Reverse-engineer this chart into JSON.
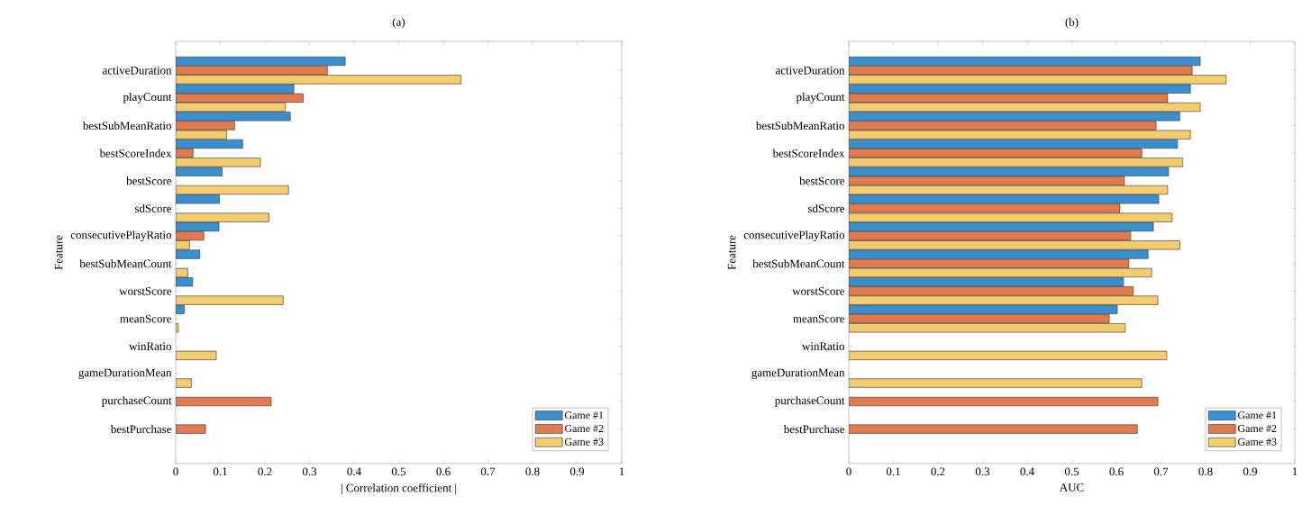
{
  "chart_data": [
    {
      "type": "bar",
      "orientation": "horizontal",
      "title": "(a)",
      "xlabel": "| Correlation coefficient |",
      "ylabel": "Feature",
      "categories": [
        "activeDuration",
        "playCount",
        "bestSubMeanRatio",
        "bestScoreIndex",
        "bestScore",
        "sdScore",
        "consecutivePlayRatio",
        "bestSubMeanCount",
        "worstScore",
        "meanScore",
        "winRatio",
        "gameDurationMean",
        "purchaseCount",
        "bestPurchase"
      ],
      "series": [
        {
          "name": "Game #1",
          "color": "#3c8fcf",
          "values": [
            0.38,
            0.265,
            0.257,
            0.15,
            0.104,
            0.098,
            0.097,
            0.054,
            0.038,
            0.019,
            null,
            null,
            null,
            null
          ]
        },
        {
          "name": "Game #2",
          "color": "#e07b50",
          "values": [
            0.34,
            0.286,
            0.132,
            0.039,
            null,
            null,
            0.063,
            null,
            null,
            null,
            null,
            null,
            0.214,
            0.067
          ]
        },
        {
          "name": "Game #3",
          "color": "#f2cc6f",
          "values": [
            0.64,
            0.246,
            0.114,
            0.19,
            0.253,
            0.209,
            0.031,
            0.027,
            0.241,
            0.006,
            0.091,
            0.035,
            null,
            null
          ]
        }
      ],
      "xlim": [
        0,
        1
      ],
      "xticks": [
        0,
        0.1,
        0.2,
        0.3,
        0.4,
        0.5,
        0.6,
        0.7,
        0.8,
        0.9,
        1
      ],
      "legend": "bottom right"
    },
    {
      "type": "bar",
      "orientation": "horizontal",
      "title": "(b)",
      "xlabel": "AUC",
      "ylabel": "Feature",
      "categories": [
        "activeDuration",
        "playCount",
        "bestSubMeanRatio",
        "bestScoreIndex",
        "bestScore",
        "sdScore",
        "consecutivePlayRatio",
        "bestSubMeanCount",
        "worstScore",
        "meanScore",
        "winRatio",
        "gameDurationMean",
        "purchaseCount",
        "bestPurchase"
      ],
      "series": [
        {
          "name": "Game #1",
          "color": "#3c8fcf",
          "values": [
            0.788,
            0.766,
            0.742,
            0.737,
            0.717,
            0.695,
            0.683,
            0.671,
            0.616,
            0.602,
            null,
            null,
            null,
            null
          ]
        },
        {
          "name": "Game #2",
          "color": "#e07b50",
          "values": [
            0.77,
            0.715,
            0.689,
            0.657,
            0.618,
            0.608,
            0.632,
            0.628,
            0.638,
            0.584,
            null,
            null,
            0.693,
            0.647
          ]
        },
        {
          "name": "Game #3",
          "color": "#f2cc6f",
          "values": [
            0.846,
            0.788,
            0.766,
            0.749,
            0.715,
            0.725,
            0.742,
            0.679,
            0.693,
            0.62,
            0.713,
            0.657,
            null,
            null
          ]
        }
      ],
      "xlim": [
        0,
        1
      ],
      "xticks": [
        0,
        0.1,
        0.2,
        0.3,
        0.4,
        0.5,
        0.6,
        0.7,
        0.8,
        0.9,
        1
      ],
      "legend": "bottom right"
    }
  ]
}
